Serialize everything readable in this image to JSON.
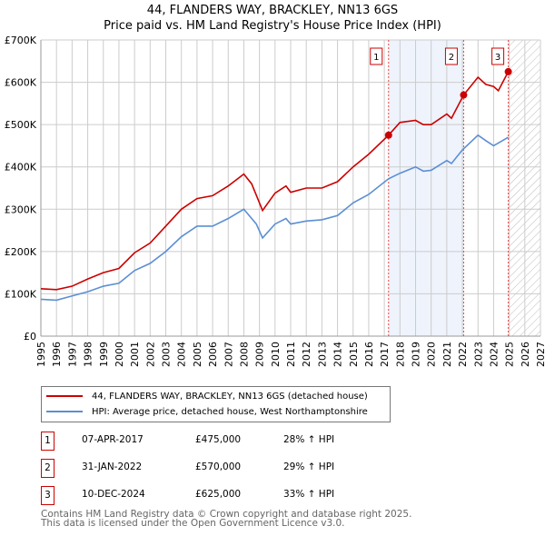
{
  "chart_data": {
    "type": "line",
    "title": "44, FLANDERS WAY, BRACKLEY, NN13 6GS",
    "subtitle": "Price paid vs. HM Land Registry's House Price Index (HPI)",
    "xlim": [
      1995,
      2027
    ],
    "ylim": [
      0,
      700000
    ],
    "yticks": [
      {
        "v": 0,
        "label": "£0"
      },
      {
        "v": 100000,
        "label": "£100K"
      },
      {
        "v": 200000,
        "label": "£200K"
      },
      {
        "v": 300000,
        "label": "£300K"
      },
      {
        "v": 400000,
        "label": "£400K"
      },
      {
        "v": 500000,
        "label": "£500K"
      },
      {
        "v": 600000,
        "label": "£600K"
      },
      {
        "v": 700000,
        "label": "£700K"
      }
    ],
    "xticks": [
      "1995",
      "1996",
      "1997",
      "1998",
      "1999",
      "2000",
      "2001",
      "2002",
      "2003",
      "2004",
      "2005",
      "2006",
      "2007",
      "2008",
      "2009",
      "2010",
      "2011",
      "2012",
      "2013",
      "2014",
      "2015",
      "2016",
      "2017",
      "2018",
      "2019",
      "2020",
      "2021",
      "2022",
      "2023",
      "2024",
      "2025",
      "2026",
      "2027"
    ],
    "grid": true,
    "shaded_region": [
      2017.27,
      2022.08
    ],
    "hatched_from": 2025.0,
    "series": [
      {
        "name": "44, FLANDERS WAY, BRACKLEY, NN13 6GS (detached house)",
        "color": "#cc0000",
        "x": [
          1995,
          1996,
          1997,
          1998,
          1999,
          2000,
          2001,
          2002,
          2003,
          2004,
          2005,
          2006,
          2007,
          2008,
          2008.5,
          2009.2,
          2010,
          2010.7,
          2011,
          2012,
          2013,
          2014,
          2015,
          2016,
          2017.27,
          2018,
          2019,
          2019.5,
          2020,
          2021,
          2021.3,
          2022.08,
          2023,
          2023.5,
          2024,
          2024.3,
          2024.94
        ],
        "y": [
          112000,
          110000,
          118000,
          135000,
          150000,
          160000,
          197000,
          220000,
          260000,
          300000,
          325000,
          332000,
          355000,
          383000,
          360000,
          297000,
          338000,
          355000,
          340000,
          350000,
          350000,
          365000,
          400000,
          430000,
          475000,
          505000,
          510000,
          500000,
          500000,
          525000,
          515000,
          570000,
          612000,
          595000,
          590000,
          580000,
          625000
        ]
      },
      {
        "name": "HPI: Average price, detached house, West Northamptonshire",
        "color": "#5b8fd4",
        "x": [
          1995,
          1996,
          1997,
          1998,
          1999,
          2000,
          2001,
          2002,
          2003,
          2004,
          2005,
          2006,
          2007,
          2008,
          2008.8,
          2009.2,
          2010,
          2010.7,
          2011,
          2012,
          2013,
          2014,
          2015,
          2016,
          2017.27,
          2018,
          2019,
          2019.5,
          2020,
          2021,
          2021.3,
          2022,
          2023,
          2023.5,
          2024,
          2024.94
        ],
        "y": [
          87000,
          85000,
          95000,
          105000,
          118000,
          125000,
          155000,
          172000,
          200000,
          235000,
          260000,
          260000,
          278000,
          300000,
          265000,
          232000,
          265000,
          278000,
          265000,
          272000,
          275000,
          285000,
          315000,
          335000,
          372000,
          385000,
          400000,
          390000,
          392000,
          415000,
          408000,
          440000,
          475000,
          462000,
          450000,
          470000
        ]
      }
    ],
    "sales": [
      {
        "label": "1",
        "x": 2017.27,
        "y": 475000,
        "date": "07-APR-2017",
        "price": "£475,000",
        "hpi": "28% ↑ HPI"
      },
      {
        "label": "2",
        "x": 2022.08,
        "y": 570000,
        "date": "31-JAN-2022",
        "price": "£570,000",
        "hpi": "29% ↑ HPI"
      },
      {
        "label": "3",
        "x": 2024.94,
        "y": 625000,
        "date": "10-DEC-2024",
        "price": "£625,000",
        "hpi": "33% ↑ HPI"
      }
    ]
  },
  "footer": {
    "line1": "Contains HM Land Registry data © Crown copyright and database right 2025.",
    "line2": "This data is licensed under the Open Government Licence v3.0."
  }
}
